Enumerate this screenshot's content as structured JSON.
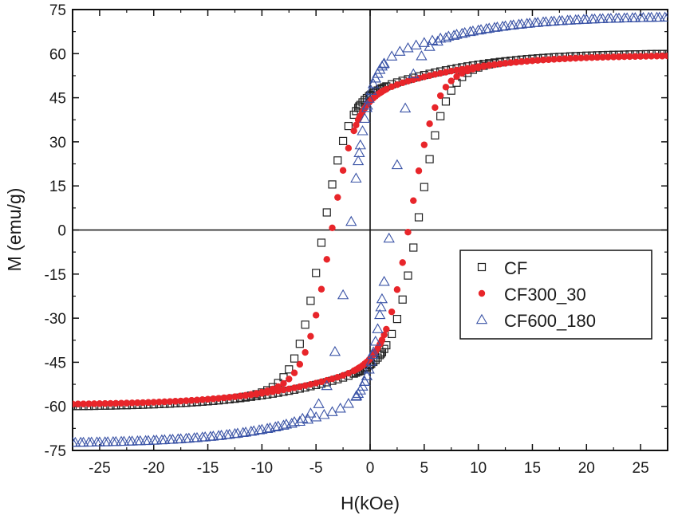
{
  "chart_data": {
    "type": "scatter",
    "xlabel": "H(kOe)",
    "ylabel": "M (emu/g)",
    "xlim": [
      -27.5,
      27.5
    ],
    "ylim": [
      -75,
      75
    ],
    "xticks": [
      -25,
      -20,
      -15,
      -10,
      -5,
      0,
      5,
      10,
      15,
      20,
      25
    ],
    "yticks": [
      -75,
      -60,
      -45,
      -30,
      -15,
      0,
      15,
      30,
      45,
      60,
      75
    ],
    "legend_position": "right",
    "series": [
      {
        "name": "CF",
        "marker": "open-square",
        "color": "#222222",
        "params": {
          "Ms": 60,
          "Hc": 4.5,
          "w": 2.4,
          "chi": 0.12,
          "drop": 14,
          "hmax": 27.5,
          "step": 0.5,
          "inner": 1.3
        }
      },
      {
        "name": "CF300_30",
        "marker": "filled-circle",
        "color": "#e8252a",
        "params": {
          "Ms": 59.3,
          "Hc": 3.7,
          "w": 2.3,
          "chi": 0.12,
          "drop": 14,
          "hmax": 27.5,
          "step": 0.5,
          "inner": 1.3
        }
      },
      {
        "name": "CF600_180",
        "marker": "open-triangle",
        "color": "#3a53a6",
        "params": {
          "Ms": 72.5,
          "Hc": 1.9,
          "w": 1.75,
          "chi": 0.11,
          "drop": 8,
          "hmax": 27.5,
          "step": 0.75,
          "inner": 1.3
        }
      }
    ]
  }
}
